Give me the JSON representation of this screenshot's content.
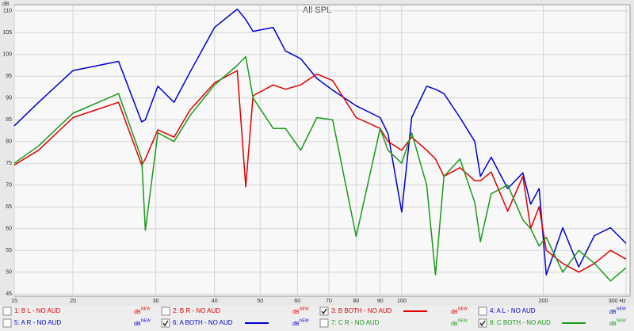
{
  "chart_data": {
    "type": "line",
    "title": "All SPL",
    "y_unit_label": "dB",
    "x": [
      15,
      16.9,
      20,
      25,
      28,
      28.5,
      30.3,
      32.8,
      35.5,
      40,
      44.7,
      46.6,
      48.3,
      53.3,
      56.6,
      61,
      66,
      71.3,
      80,
      90,
      93.5,
      100,
      105,
      113,
      118,
      123,
      133,
      143,
      147,
      155,
      168,
      181,
      188,
      196,
      203,
      220,
      238,
      257,
      278,
      300
    ],
    "series": [
      {
        "color": "#0000d0",
        "values": [
          83.6,
          89,
          96.3,
          98.4,
          84.5,
          85,
          92.7,
          89,
          96,
          106.2,
          110.4,
          108,
          105.3,
          106.2,
          100.8,
          99,
          94.5,
          91.8,
          88.2,
          85.5,
          81.8,
          63.8,
          85.5,
          92.7,
          92,
          91,
          85.5,
          80,
          72,
          76.4,
          69.2,
          72.8,
          65.6,
          69.2,
          49.4,
          60.2,
          51.2,
          58.4,
          60.2,
          56.6
        ]
      },
      {
        "color": "#e00000",
        "values": [
          74.6,
          78,
          85.5,
          89,
          74.6,
          76,
          82.7,
          81,
          87.3,
          93.5,
          96.3,
          69.6,
          90.5,
          93,
          92,
          93,
          95.5,
          94,
          85.5,
          83,
          80,
          78,
          81,
          78,
          76,
          72,
          74,
          71,
          71,
          73,
          64,
          72,
          60,
          65,
          55,
          52,
          50,
          52,
          55,
          53
        ]
      },
      {
        "color": "#1a9a1a",
        "values": [
          75,
          79,
          86.5,
          91,
          76,
          59.6,
          82,
          80,
          86,
          93,
          97.5,
          99.5,
          90,
          83,
          83,
          78,
          85.5,
          85,
          58.2,
          83,
          78,
          75,
          82,
          70,
          49.4,
          72,
          76,
          66,
          57,
          68,
          70,
          62,
          60,
          56,
          58,
          50,
          55,
          52,
          48,
          51
        ]
      }
    ],
    "xlim": [
      15,
      300
    ],
    "log_x": true,
    "xticks": [
      15,
      20,
      30,
      40,
      50,
      60,
      70,
      80,
      90,
      100,
      200,
      {
        "value": 300,
        "label": "300 Hz"
      }
    ],
    "ylim": [
      44.5,
      111.4
    ],
    "yticks": [
      45,
      50,
      55,
      60,
      65,
      70,
      75,
      80,
      85,
      90,
      95,
      100,
      105,
      110
    ],
    "grid": true,
    "legend": [
      {
        "name": "1: B L - NO AUD",
        "color": "#e00000",
        "checked": false,
        "unit": "dB",
        "tag": "NEW"
      },
      {
        "name": "2: B R - NO AUD",
        "color": "#e00000",
        "checked": false,
        "unit": "dB",
        "tag": "NEW"
      },
      {
        "name": "3: B BOTH - NO AUD",
        "color": "#e00000",
        "checked": true,
        "unit": "dB",
        "tag": "NEW"
      },
      {
        "name": "4: A L - NO AUD",
        "color": "#0000d0",
        "checked": false,
        "unit": "dB",
        "tag": "NEW"
      },
      {
        "name": "5: A R - NO AUD",
        "color": "#0000d0",
        "checked": false,
        "unit": "dB",
        "tag": "NEW"
      },
      {
        "name": "6: A BOTH - NO AUD",
        "color": "#0000d0",
        "checked": true,
        "unit": "dB",
        "tag": "NEW"
      },
      {
        "name": "7: C R - NO AUD",
        "color": "#1a9a1a",
        "checked": false,
        "unit": "dB",
        "tag": "NEW"
      },
      {
        "name": "8: C  BOTH - NO AUD",
        "color": "#1a9a1a",
        "checked": true,
        "unit": "dB",
        "tag": "NEW"
      }
    ]
  }
}
